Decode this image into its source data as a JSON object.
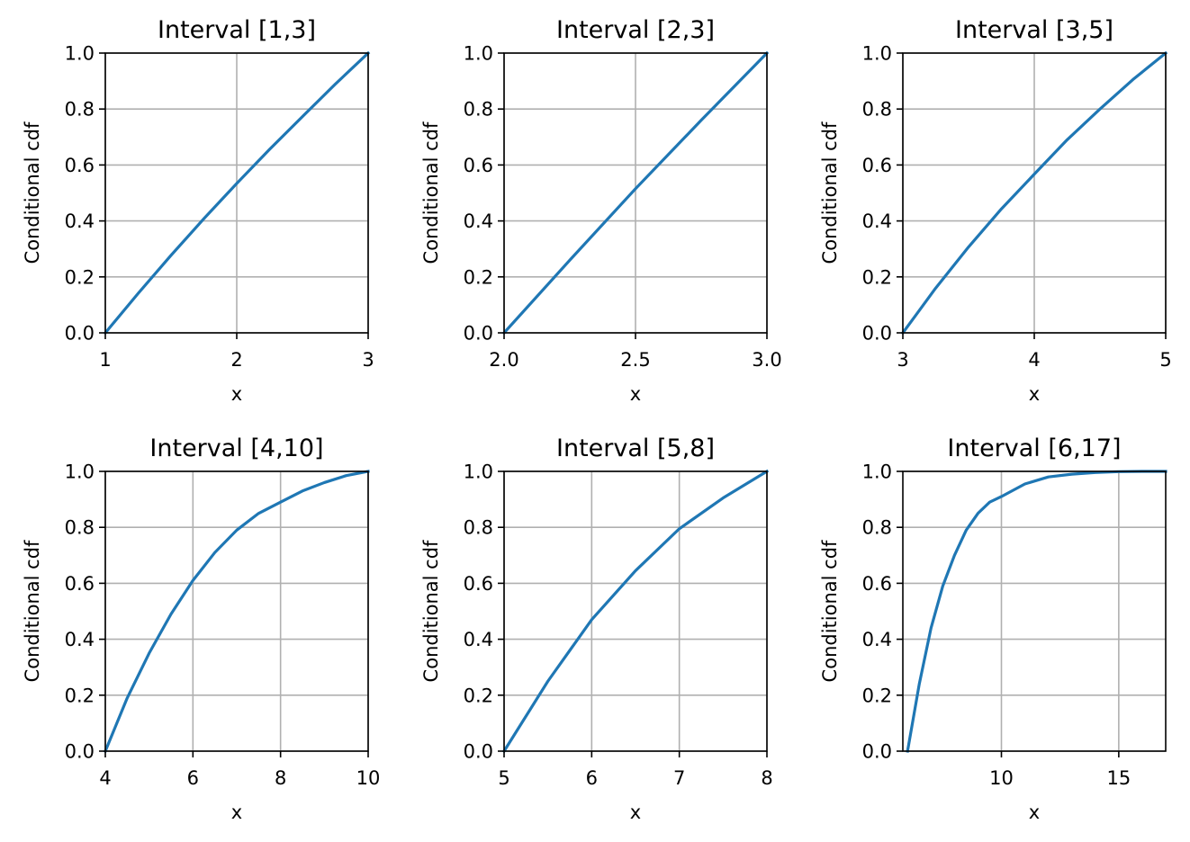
{
  "colors": {
    "line": "#1f77b4"
  },
  "chart_data": [
    {
      "type": "line",
      "title": "Interval [1,3]",
      "xlabel": "x",
      "ylabel": "Conditional cdf",
      "xlim": [
        1,
        3
      ],
      "ylim": [
        0,
        1
      ],
      "xticks": [
        1,
        2,
        3
      ],
      "xtick_labels": [
        "1",
        "2",
        "3"
      ],
      "yticks": [
        0,
        0.2,
        0.4,
        0.6,
        0.8,
        1.0
      ],
      "ytick_labels": [
        "0.0",
        "0.2",
        "0.4",
        "0.6",
        "0.8",
        "1.0"
      ],
      "grid": true,
      "x": [
        1,
        1.25,
        1.5,
        1.75,
        2,
        2.25,
        2.5,
        2.75,
        3
      ],
      "series": [
        {
          "values": [
            0,
            0.141,
            0.277,
            0.408,
            0.534,
            0.656,
            0.773,
            0.889,
            1
          ]
        }
      ]
    },
    {
      "type": "line",
      "title": "Interval [2,3]",
      "xlabel": "x",
      "ylabel": "Conditional cdf",
      "xlim": [
        2,
        3
      ],
      "ylim": [
        0,
        1
      ],
      "xticks": [
        2,
        2.5,
        3
      ],
      "xtick_labels": [
        "2.0",
        "2.5",
        "3.0"
      ],
      "yticks": [
        0,
        0.2,
        0.4,
        0.6,
        0.8,
        1.0
      ],
      "ytick_labels": [
        "0.0",
        "0.2",
        "0.4",
        "0.6",
        "0.8",
        "1.0"
      ],
      "grid": true,
      "x": [
        2,
        2.25,
        2.5,
        2.75,
        3
      ],
      "series": [
        {
          "values": [
            0,
            0.26,
            0.515,
            0.76,
            1
          ]
        }
      ]
    },
    {
      "type": "line",
      "title": "Interval [3,5]",
      "xlabel": "x",
      "ylabel": "Conditional cdf",
      "xlim": [
        3,
        5
      ],
      "ylim": [
        0,
        1
      ],
      "xticks": [
        3,
        4,
        5
      ],
      "xtick_labels": [
        "3",
        "4",
        "5"
      ],
      "yticks": [
        0,
        0.2,
        0.4,
        0.6,
        0.8,
        1.0
      ],
      "ytick_labels": [
        "0.0",
        "0.2",
        "0.4",
        "0.6",
        "0.8",
        "1.0"
      ],
      "grid": true,
      "x": [
        3,
        3.25,
        3.5,
        3.75,
        4,
        4.25,
        4.5,
        4.75,
        5
      ],
      "series": [
        {
          "values": [
            0,
            0.16,
            0.307,
            0.443,
            0.567,
            0.69,
            0.8,
            0.905,
            1
          ]
        }
      ]
    },
    {
      "type": "line",
      "title": "Interval [4,10]",
      "xlabel": "x",
      "ylabel": "Conditional cdf",
      "xlim": [
        4,
        10
      ],
      "ylim": [
        0,
        1
      ],
      "xticks": [
        4,
        6,
        8,
        10
      ],
      "xtick_labels": [
        "4",
        "6",
        "8",
        "10"
      ],
      "yticks": [
        0,
        0.2,
        0.4,
        0.6,
        0.8,
        1.0
      ],
      "ytick_labels": [
        "0.0",
        "0.2",
        "0.4",
        "0.6",
        "0.8",
        "1.0"
      ],
      "grid": true,
      "x": [
        4,
        4.5,
        5,
        5.5,
        6,
        6.5,
        7,
        7.5,
        8,
        8.5,
        9,
        9.5,
        10
      ],
      "series": [
        {
          "values": [
            0,
            0.19,
            0.35,
            0.49,
            0.61,
            0.71,
            0.79,
            0.85,
            0.89,
            0.93,
            0.96,
            0.985,
            1
          ]
        }
      ]
    },
    {
      "type": "line",
      "title": "Interval [5,8]",
      "xlabel": "x",
      "ylabel": "Conditional cdf",
      "xlim": [
        5,
        8
      ],
      "ylim": [
        0,
        1
      ],
      "xticks": [
        5,
        6,
        7,
        8
      ],
      "xtick_labels": [
        "5",
        "6",
        "7",
        "8"
      ],
      "yticks": [
        0,
        0.2,
        0.4,
        0.6,
        0.8,
        1.0
      ],
      "ytick_labels": [
        "0.0",
        "0.2",
        "0.4",
        "0.6",
        "0.8",
        "1.0"
      ],
      "grid": true,
      "x": [
        5,
        5.5,
        6,
        6.5,
        7,
        7.5,
        8
      ],
      "series": [
        {
          "values": [
            0,
            0.25,
            0.47,
            0.645,
            0.795,
            0.905,
            1
          ]
        }
      ]
    },
    {
      "type": "line",
      "title": "Interval [6,17]",
      "xlabel": "x",
      "ylabel": "Conditional cdf",
      "xlim": [
        5.8,
        17
      ],
      "ylim": [
        0,
        1
      ],
      "xticks": [
        10,
        15
      ],
      "xtick_labels": [
        "10",
        "15"
      ],
      "yticks": [
        0,
        0.2,
        0.4,
        0.6,
        0.8,
        1.0
      ],
      "ytick_labels": [
        "0.0",
        "0.2",
        "0.4",
        "0.6",
        "0.8",
        "1.0"
      ],
      "grid": true,
      "x": [
        6,
        6.5,
        7,
        7.5,
        8,
        8.5,
        9,
        9.5,
        10,
        11,
        12,
        13,
        14,
        15,
        16,
        17
      ],
      "series": [
        {
          "values": [
            0,
            0.24,
            0.44,
            0.59,
            0.7,
            0.79,
            0.85,
            0.89,
            0.91,
            0.955,
            0.98,
            0.99,
            0.996,
            0.999,
            1,
            1
          ]
        }
      ]
    }
  ]
}
